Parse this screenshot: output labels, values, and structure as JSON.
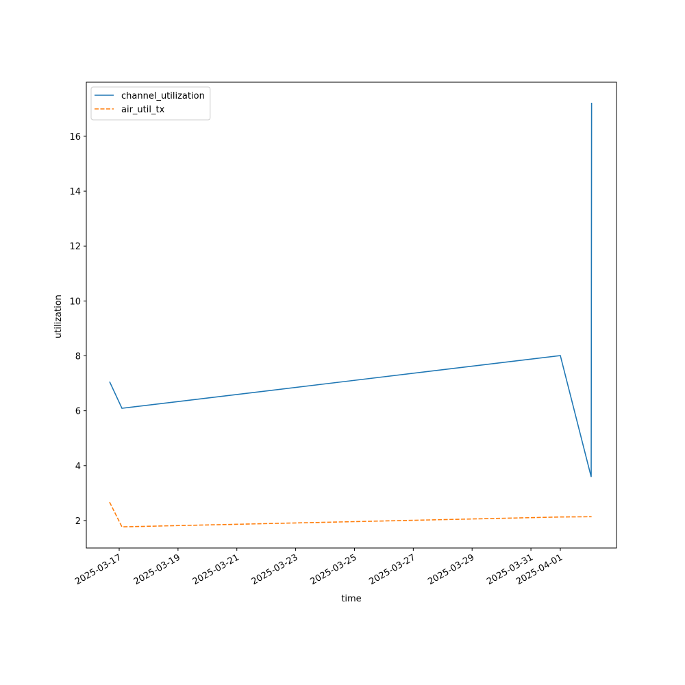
{
  "chart_data": {
    "type": "line",
    "xlabel": "time",
    "ylabel": "utilization",
    "x": [
      "2025-03-16T16:10",
      "2025-03-17T02:15",
      "2025-04-01T00:00",
      "2025-04-02T01:10",
      "2025-04-02T01:30"
    ],
    "series": [
      {
        "name": "channel_utilization",
        "color": "#1f77b4",
        "dash": "solid",
        "values": [
          7.06,
          6.09,
          8.01,
          3.59,
          17.22
        ]
      },
      {
        "name": "air_util_tx",
        "color": "#ff7f0e",
        "dash": "dashed",
        "values": [
          2.67,
          1.77,
          2.13,
          2.14,
          2.14
        ]
      }
    ],
    "xlim": [
      "2025-03-15T21:10",
      "2025-04-02T21:50"
    ],
    "xticks": [
      "2025-03-17",
      "2025-03-19",
      "2025-03-21",
      "2025-03-23",
      "2025-03-25",
      "2025-03-27",
      "2025-03-29",
      "2025-03-31",
      "2025-04-01"
    ],
    "ylim": [
      1.0,
      17.97
    ],
    "yticks": [
      2,
      4,
      6,
      8,
      10,
      12,
      14,
      16
    ],
    "legend": "upper left"
  }
}
